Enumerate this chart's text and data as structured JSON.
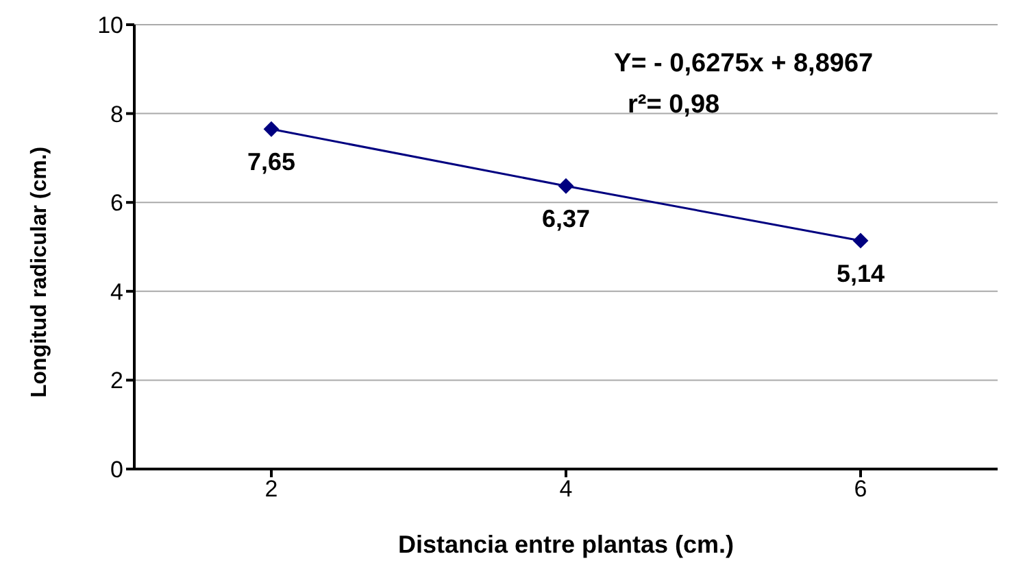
{
  "chart_data": {
    "type": "line",
    "xlabel": "Distancia entre plantas (cm.)",
    "ylabel": "Longitud radicular (cm.)",
    "categories": [
      "2",
      "4",
      "6"
    ],
    "series": [
      {
        "color": "#000080",
        "values": [
          7.65,
          6.37,
          5.14
        ],
        "value_labels": [
          "7,65",
          "6,37",
          "5,14"
        ]
      }
    ],
    "ylim": [
      0,
      10
    ],
    "yticks": [
      0,
      2,
      4,
      6,
      8,
      10
    ],
    "grid": "y",
    "marker": "diamond",
    "line_style": "solid",
    "annotations": [
      "Y= - 0,6275x + 8,8967",
      "r²= 0,98"
    ]
  }
}
